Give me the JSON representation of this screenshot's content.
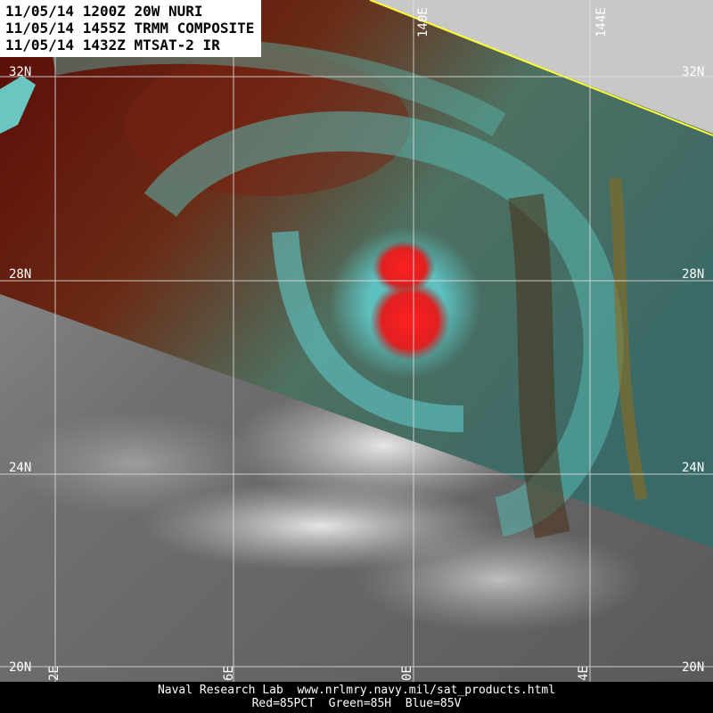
{
  "header": {
    "lines": [
      "11/05/14 1200Z 20W NURI",
      "11/05/14 1455Z TRMM COMPOSITE",
      "11/05/14 1432Z MTSAT-2 IR"
    ]
  },
  "grid": {
    "latitude_labels_left": [
      "32N",
      "28N",
      "24N",
      "20N"
    ],
    "latitude_labels_right": [
      "32N",
      "28N",
      "24N",
      "20N"
    ],
    "longitude_labels_top": [
      "140E",
      "144E"
    ],
    "longitude_labels_bottom": [
      "2E",
      "6E",
      "0E",
      "4E"
    ]
  },
  "footer": {
    "lines": [
      "Naval Research Lab  www.nrlmry.navy.mil/sat_products.html",
      "Red=85PCT  Green=85H  Blue=85V"
    ]
  }
}
